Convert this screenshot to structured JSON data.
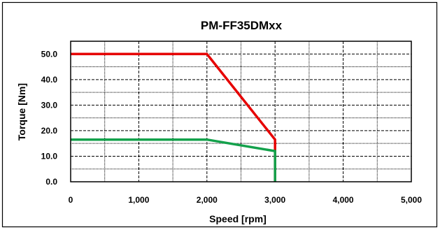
{
  "chart_data": {
    "type": "line",
    "title": "PM-FF35DMxx",
    "xlabel": "Speed [rpm]",
    "ylabel": "Torque [Nm]",
    "xlim": [
      0,
      5000
    ],
    "ylim": [
      0,
      55
    ],
    "x_ticks": [
      0,
      1000,
      2000,
      3000,
      4000,
      5000
    ],
    "x_tick_labels": [
      "0",
      "1,000",
      "2,000",
      "3,000",
      "4,000",
      "5,000"
    ],
    "y_ticks": [
      0,
      10,
      20,
      30,
      40,
      50
    ],
    "y_tick_labels": [
      "0.0",
      "10.0",
      "20.0",
      "30.0",
      "40.0",
      "50.0"
    ],
    "grid": true,
    "series": [
      {
        "color": "#e60000",
        "points": [
          [
            0,
            50
          ],
          [
            2000,
            50
          ],
          [
            3000,
            16.5
          ],
          [
            3000,
            0
          ]
        ]
      },
      {
        "color": "#13a14b",
        "points": [
          [
            0,
            16.5
          ],
          [
            2000,
            16.5
          ],
          [
            3000,
            12
          ],
          [
            3000,
            0
          ]
        ]
      }
    ]
  }
}
